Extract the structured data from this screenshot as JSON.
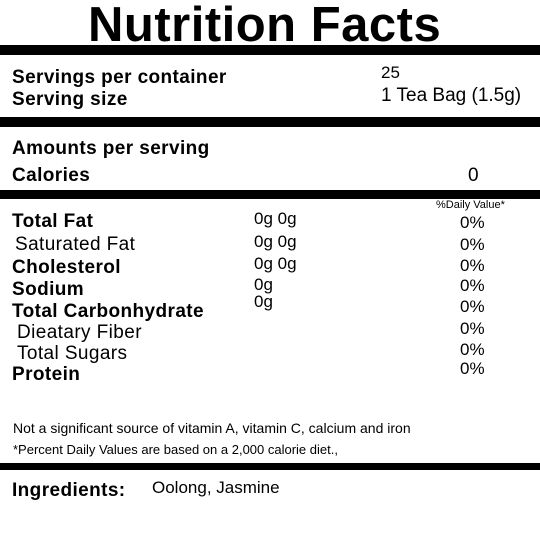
{
  "title": "Nutrition Facts",
  "servings": {
    "per_container_label": "Servings per container",
    "per_container_value": "25",
    "size_label": "Serving size",
    "size_value": "1 Tea Bag (1.5g)"
  },
  "amounts_label": "Amounts per serving",
  "calories": {
    "label": "Calories",
    "value": "0"
  },
  "daily_value_header": "%Daily Value*",
  "nutrients": [
    {
      "label": "Total Fat",
      "amount": "0g 0g",
      "dv": "0%"
    },
    {
      "label": "Saturated Fat",
      "amount": "0g 0g",
      "dv": "0%"
    },
    {
      "label": "Cholesterol",
      "amount": "0g 0g",
      "dv": "0%"
    },
    {
      "label": "Sodium",
      "amount": "0g",
      "dv": "0%"
    },
    {
      "label": "Total Carbonhydrate",
      "amount": "0g",
      "dv": "0%"
    },
    {
      "label": "Dieatary Fiber",
      "amount": "",
      "dv": "0%"
    },
    {
      "label": "Total Sugars",
      "amount": "",
      "dv": "0%"
    },
    {
      "label": "Protein",
      "amount": "",
      "dv": "0%"
    }
  ],
  "footnotes": {
    "vitamins": "Not a significant source of vitamin A, vitamin C, calcium and iron",
    "daily_values": "*Percent Daily Values are based on a 2,000 calorie diet.,"
  },
  "ingredients": {
    "label": "Ingredients:",
    "value": "Oolong, Jasmine"
  }
}
